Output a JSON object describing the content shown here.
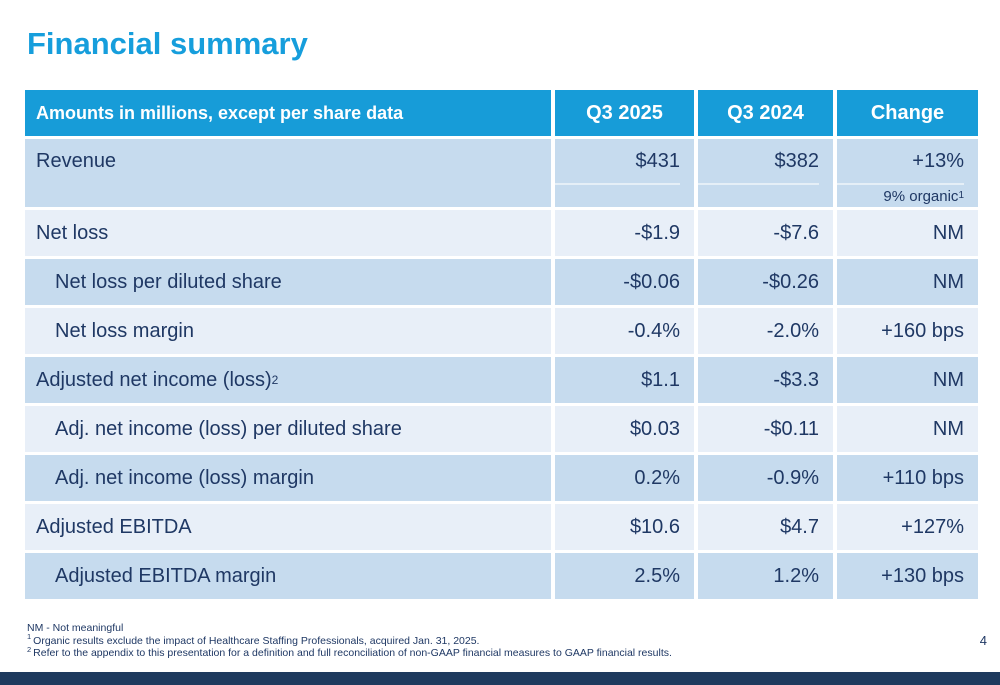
{
  "page": {
    "title": "Financial summary",
    "page_number": "4"
  },
  "colors": {
    "accent_cyan": "#179CD8",
    "title_cyan": "#169EDC",
    "row_dark": "#C6DBEE",
    "row_light": "#E8EFF8",
    "text_navy": "#1F3864",
    "bottom_bar_navy": "#1E3A5E"
  },
  "table": {
    "header": {
      "label": "Amounts in millions, except per share data",
      "col_q3_2025": "Q3 2025",
      "col_q3_2024": "Q3 2024",
      "col_change": "Change"
    },
    "rows": [
      {
        "label": "Revenue",
        "q3_2025": "$431",
        "q3_2024": "$382",
        "change": "+13%",
        "change_sub": "9% organic",
        "change_sub_sup": "1"
      },
      {
        "label": "Net loss",
        "q3_2025": "-$1.9",
        "q3_2024": "-$7.6",
        "change": "NM"
      },
      {
        "label": "Net loss per diluted share",
        "q3_2025": "-$0.06",
        "q3_2024": "-$0.26",
        "change": "NM"
      },
      {
        "label": "Net loss margin",
        "q3_2025": "-0.4%",
        "q3_2024": "-2.0%",
        "change": "+160 bps"
      },
      {
        "label": "Adjusted net income (loss)",
        "label_sup": "2",
        "q3_2025": "$1.1",
        "q3_2024": "-$3.3",
        "change": "NM"
      },
      {
        "label": "Adj. net income (loss) per diluted share",
        "q3_2025": "$0.03",
        "q3_2024": "-$0.11",
        "change": "NM"
      },
      {
        "label": "Adj. net income (loss) margin",
        "q3_2025": "0.2%",
        "q3_2024": "-0.9%",
        "change": "+110 bps"
      },
      {
        "label": "Adjusted EBITDA",
        "q3_2025": "$10.6",
        "q3_2024": "$4.7",
        "change": "+127%"
      },
      {
        "label": "Adjusted EBITDA margin",
        "q3_2025": "2.5%",
        "q3_2024": "1.2%",
        "change": "+130 bps"
      }
    ]
  },
  "footnotes": [
    {
      "text": "NM - Not meaningful"
    },
    {
      "sup": "1",
      "text": "Organic results exclude the impact of Healthcare Staffing Professionals, acquired Jan. 31, 2025."
    },
    {
      "sup": "2",
      "text": "Refer to the appendix to this presentation for a definition and full reconciliation of non-GAAP financial measures to GAAP financial results."
    }
  ]
}
